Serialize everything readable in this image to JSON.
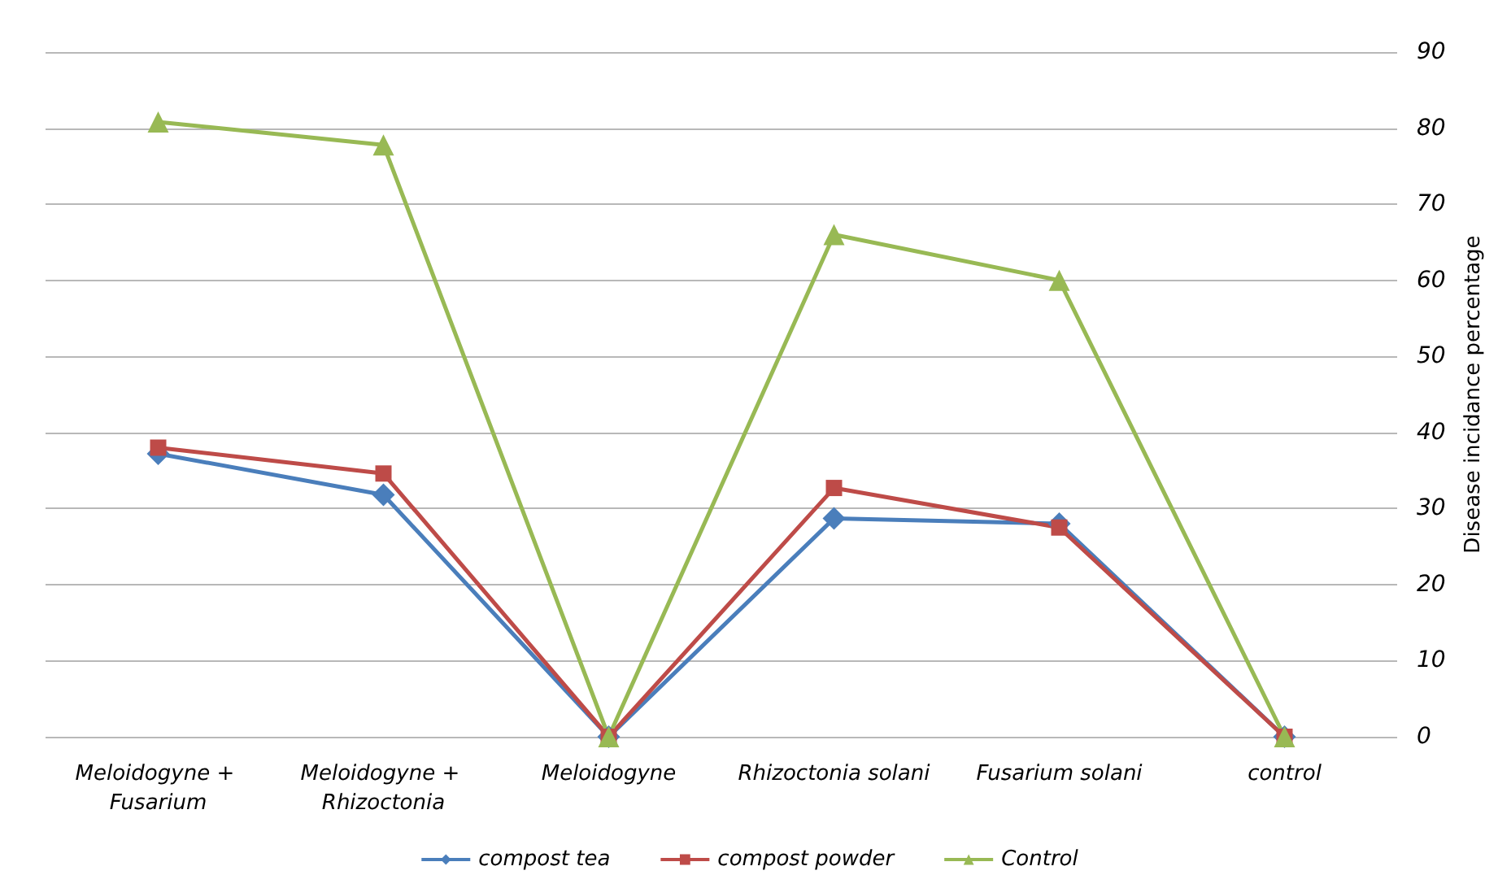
{
  "chart_data": {
    "type": "line",
    "categories": [
      "Meloidogyne + Fusarium",
      "Meloidogyne + Rhizoctonia",
      "Meloidogyne",
      "Rhizoctonia solani",
      "Fusarium solani",
      "control"
    ],
    "ylabel": "Disease incidance percentage",
    "ylim": [
      0,
      90
    ],
    "yticks": [
      0,
      10,
      20,
      30,
      40,
      50,
      60,
      70,
      80,
      90
    ],
    "grid": "y",
    "legend": "bottom",
    "line_style": "solid",
    "series": [
      {
        "name": "compost tea",
        "color": "#4a7ebb",
        "marker": "diamond",
        "values": [
          37.2,
          31.8,
          0,
          28.7,
          28,
          0
        ]
      },
      {
        "name": "compost powder",
        "color": "#be4b48",
        "marker": "square",
        "values": [
          38,
          34.6,
          0,
          32.7,
          27.5,
          0
        ]
      },
      {
        "name": "Control",
        "color": "#98b954",
        "marker": "triangle",
        "values": [
          80.8,
          77.8,
          0,
          66,
          60,
          0
        ]
      }
    ]
  }
}
